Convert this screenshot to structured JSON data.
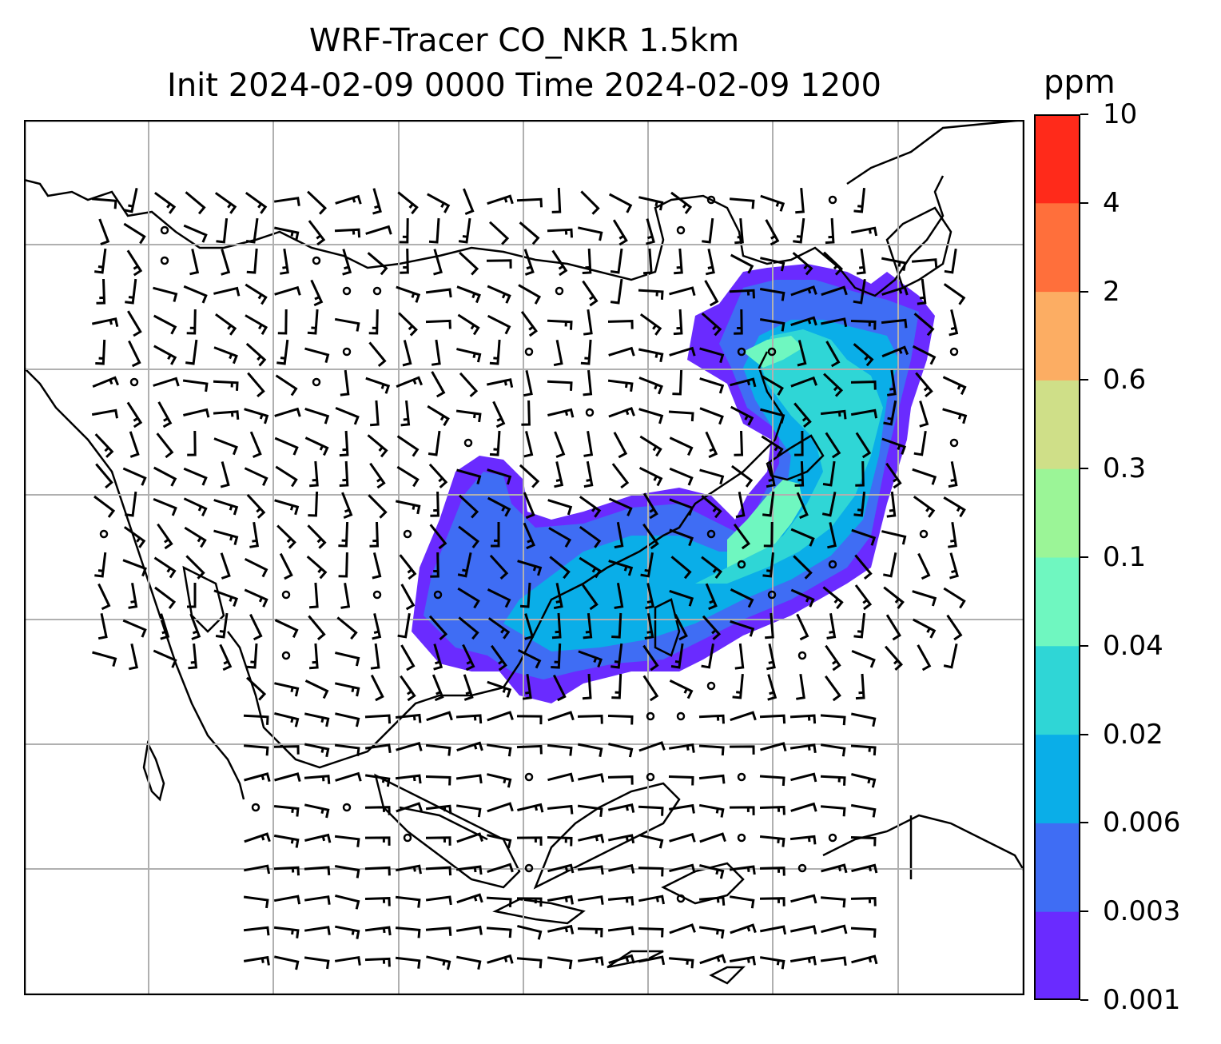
{
  "title": {
    "line1": "WRF-Tracer CO_NKR 1.5km",
    "line2": "Init 2024-02-09 0000 Time 2024-02-09 1200"
  },
  "colorbar": {
    "unit": "ppm",
    "levels": [
      "0.001",
      "0.003",
      "0.006",
      "0.02",
      "0.04",
      "0.1",
      "0.3",
      "0.6",
      "2",
      "4",
      "10"
    ],
    "colors": [
      "#6a2bff",
      "#3f6df4",
      "#0aaee8",
      "#2fd6d6",
      "#6ff7c0",
      "#9bf597",
      "#cfdf88",
      "#fcad63",
      "#ff6f3b",
      "#ff2a1a"
    ]
  },
  "map": {
    "field": "CO tracer concentration at 1.5 km",
    "overlays": [
      "coastlines",
      "country-borders",
      "gridlines",
      "wind-barbs"
    ]
  }
}
